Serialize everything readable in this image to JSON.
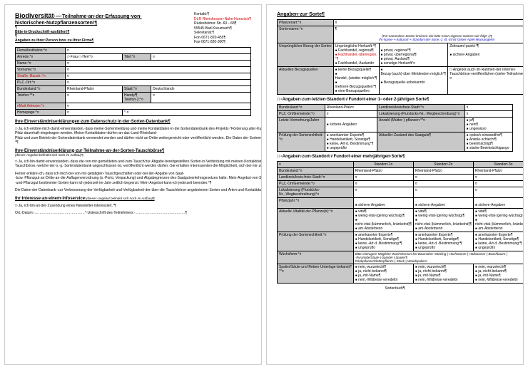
{
  "page1": {
    "title_strong": "Biodiversität",
    "title_rest": "·—·Teilnahme·an·der·Erfassung·von·",
    "title_line2": "historischen·Nutzpflanzensorten!¶",
    "empty_p": "¶",
    "req1": "Bitte·in·Druckschrift·ausfüllen!¶",
    "req2": "Angaben·zu·Ihrer·Person·bzw.·zu·Ihrer·Firma¶",
    "contact": {
      "l1": "Kontakt:¶",
      "l2": "DLR·Rheinhessen-Nahe-Hunsrück¶",
      "l3": "Rüdesheimer·Str.·60·-·68¶",
      "l4": "55545·Bad·Kreuznach¶",
      "l5": "Sekretariat:¶",
      "l6": "Fon·0671·820-455¶",
      "l7": "Fax·0671·820-300¶"
    },
    "t1": {
      "r1c1": "Firma/Institution:°¤",
      "r1c2": "¤",
      "r2c1": "Anrede:°¤",
      "r2c2a": "□·Frau·□·Herr°¤",
      "r2c2b": "Titel:°¤",
      "r2c2c": "¤",
      "r3c1": "Name:°¤",
      "r4c1": "Vorname:°¤",
      "r5c1": "Straße,·Baustr.:°¤",
      "r6c1": "PLZ,·Ort:°¤",
      "r7c1": "Bundesland:°¤",
      "r7c2": "Rheinland-Pfalz¤",
      "r7c3": "Staat:°¤",
      "r7c4": "Deutschland¤",
      "r8c1": "Telefon:°*¤",
      "r8c3": "Handy/¶Telefon·2:°¤",
      "r9c1": "eMail-Adresse:°¤",
      "r10c1": "Homepage:°¤"
    },
    "s1_title": "Ihre·Einverständniserklärungen·zum·Datenschutz·in·der·Sorten-Datenbank¶",
    "s1_body": "□·Ja,·ich·erkläre·mich·damit·einverstanden,·dass·meine·Sortenmeldung·und·meine·Kontaktdaten·in·die·Sortendatenbank·des·Projekts·\"Förderung·alter·Kulturpflanzen\"·des·Landes·Rheinland-Pfalz·dauerhaft·eingetragen·werden.·Meine·Kontaktdaten·dürfen·an·das·Land·Rheinland-Pfalz·und·zum·Betrieb·der·Sortendatenbank·verwendet·werden·und·dürfen·nicht·an·Dritte·weitergereicht·oder·veröffentlicht·werden.·Die·Daten·der·Sortenmeldung·dürfen·veröffentlicht·werden·mit·Ausnahme·des·genauen·Standortes·der·gemeldeten·Pflanzen·(um·deren·Vorkommen·zu·schützen).°¶",
    "s2_title": "Ihre·Einverständniserklärung·zur·Teilnahme·an·der·Sorten-Tauschbörse¶",
    "s2_sub": "(dieses·Angebot befindet sich noch im Aufbau)¶",
    "s2_body1": "□·Ja,·ich·bin·damit·einverstanden,·dass·die·von·mir·gemeldeten·und·zum·Tausch/zur·Abgabe·bereitgestellten·Sorten·in·Verbindung·mit·meinen·Kontaktdaten·im·Rahmen·der·Sorten-Tauschbörse,·welche·der·o.·g.·Sortendatenbank·angeschlossen·ist,·veröffentlicht·werden·dürfen.·Sie·erhalten·interessenten·die·Möglichkeit,·sich·bei·mir·zu·melden.·¶",
    "s2_body2": "Ferner·erkläre·ich,·dass·ich·mich·bei·von·mir·getätigten·Tauschgeschäften·oder·bei·der·Abgabe·von·Saat-·bzw.·Pflanzgut·an·Dritte·an·die·Auflagenverordnung·(s.·Porto,·Verpackung)·und·Abgabegrenzen·des·Saatgutverkehrsgesetzes·halte.·Mein·Angebot·von·Saat-·und·Pflanzgut·bestimmter·Sorten·kann·ich·jederzeit·im·Jahr·zeitlich·begrenzt.·Mein·Angebot·kann·ich·jederzeit·beenden.°¶",
    "s2_body3": "Die·Daten·der·Datenbank:·zur·Verbesserung·der·Verfügbarkeit·und·Verfügbarkeit·der·über·die·Tauschbörse·angebotenen·Sorten·und·Arten·und·Kontaktdaten.·¶",
    "s3_title": "Ihr·Interesse·an·einem·Infoservice·",
    "s3_sub": "(dieses·Angebot befindet sich noch im Aufbau)¶",
    "s3_body": "□·Ja,·ich·bin·an·der·Zusendung·eines·Newsletter·interessiert.°¶",
    "sig": "Ort,·Datum:·……………………………………°·Unterschrift·des·Teilnehmers:·……………………………………¶"
  },
  "page2": {
    "h_sorte": "Angaben·zur·Sorte¶",
    "t2": {
      "r1c1": "Pflanzenart:°¤",
      "r2c1": "Sortenname:°¤",
      "r2_note1": "(Für·namenlose·Sorten·kreieren·Sie·bitte·einen·eigenen·Namen·wie·folgt·↓)¶",
      "r2_note2": "Ihr·Name·+·Kulturart·+·Standort·der·Sorte,·z.·B.·Ernst·Geber·Apfel·Moosangels¤",
      "r3c1": "Ursprünglicher·Bezug·der·Sorte¤",
      "r3g1": "Ursprüngliche·Herkunft:°¶",
      "r3g1a": "▪ Fachhandel,·regional¶",
      "r3g1b": "▪ Fachhandel,·überregion.°¶",
      "r3g1c": "▪ Fachhandel,·Ausland¤",
      "r3g2a": "▪ privat,·regional°¶",
      "r3g2b": "▪ privat,·überregional¶",
      "r3g2c": "▪ privat,·Ausland¶",
      "r3g2d": "▪ sonstige·Herkunft°¤",
      "r3g3": "Zeitraum/-punkt:°¶",
      "r3g3b": "▪ sichere·Angabe¤",
      "r4c1": "Aktuelles·Bezugsquelle¤",
      "r4a": "▪ keine·Bezugsquelle¶",
      "r4b": "▪ Handel,·(wieder·möglich°¶",
      "r4c": "▪ mehrere·Bezugsquellen°¶",
      "r4d": "▪ eine·Bezugsquelle¤",
      "r4e": "▪ Bezug·(auch)·über·Meldenden·möglich°¶",
      "r4f": "▪ Bezugsquelle·unbekannt¤",
      "r4g": "□·Angebot·auch·im·Rahmen·der·Internet-Tauschbörse·veröffentlichen·(siehe·Teilnahmeerklärung)¤"
    },
    "h_standort1": "□··Angaben·zum·letzten·Standort·/·Fundort·einer·1-·oder·2-jährigen·Sorte¶",
    "t3": {
      "r1c1": "Bundesland:°¤",
      "r1c2": "Rheinland-Pfalz¤",
      "r1c3": "Landkreis/kreisfreie·Stadt:°¤",
      "r2c1": "PLZ,·Ort/Gemeinde:°¤",
      "r2b": "Lokalisierung·(Flurstücks-Nr.,·Wegbeschreibung)°¤",
      "r3c1": "Letzte·Vermehrung/Jahr¤",
      "r3b": "▪ sichere·Angabe¤",
      "r3c": "Anzahl·(Mutter-)·pflanzen:°*¤",
      "r3d": "▪ ja¶▪ nein¶▪ ungewiss¤",
      "r4c1": "Prüfung·der·Sortenechtheit:°¤",
      "r4a": "▪ anerkannter·Experte¶▪ Handelsetikett,·Sonstige¶▪ keine,·Art·d.·Bestimmung°¶▪ ungeprüft¤",
      "r4b": "Aktueller·Zustand·des·Saatguts¶",
      "r4c": "▪ optisch·einwandfrei¶▪ Anteile·schlecht¶▪ beeinträchtigt¶▪ starke·Beeinträchtigung¤"
    },
    "h_standort2": "□··Angaben·zum·Standort·/·Fundort·einer·mehrjährigen·Sorte¶",
    "t4": {
      "h1": "Standort·1¤",
      "h2": "Standort·2¤",
      "h3": "Standort·3¤",
      "r1c1": "Bundesland:°¤",
      "rp": "Rheinland-Pfalz¤",
      "r2c1": "Landkreis/kreis-freie·Stadt:°¤",
      "r3c1": "PLZ,·Ort/Gemeinde:°¤",
      "r4c1": "Lokalisierung·(Flurstücks-Nr.,·Wegbeschreibung)°¤",
      "r5c1": "Pflanzjahr:°¤",
      "r5b": "▪ sichere·Angabe¤",
      "r6c1": "Aktuelle·Vitalität·der·Pflanze(n):°¤",
      "r6a": "▪ vital¶▪ wenig·vital·(gering·wüchsig)¶▪ nicht·vital·(kümmerlich,·kränkelnd)¶▪ am·Absterben¤",
      "r7c1": "Prüfung·der·Sortenechtheit:°¤",
      "r7a": "▪ anerkannter·Experte¶▪ Handelsetikett,·Sonstige¶▪ keine,·Art·d.·Bestimmung°¶▪ ungeprüft¤",
      "r8c1": "Wuchsform:°¤",
      "r8note": "Bitte·eintragen!·Mögliche·Wuchsformen·bei·Baumobst:·Sämling·|·Hochstamm·|·Halbstamm·|·Buschbaum·|·Pyramide/Säule·|·Spindel·|·Spalier¶Rankpflanze/Kletterpflanze·|·Stock·|·Wandspalier¤",
      "r9c1": "Spalier/Säule·und·Reben·Unterlage·bekannt?°*¤",
      "r9a": "▪ nein,·wurzelecht¶▪ ja,·nicht·bekannt¶▪ ja,·mit·Name¶▪ nein,·Wildreise·veredelt¤"
    },
    "footer": "Sortenbuch¶"
  }
}
